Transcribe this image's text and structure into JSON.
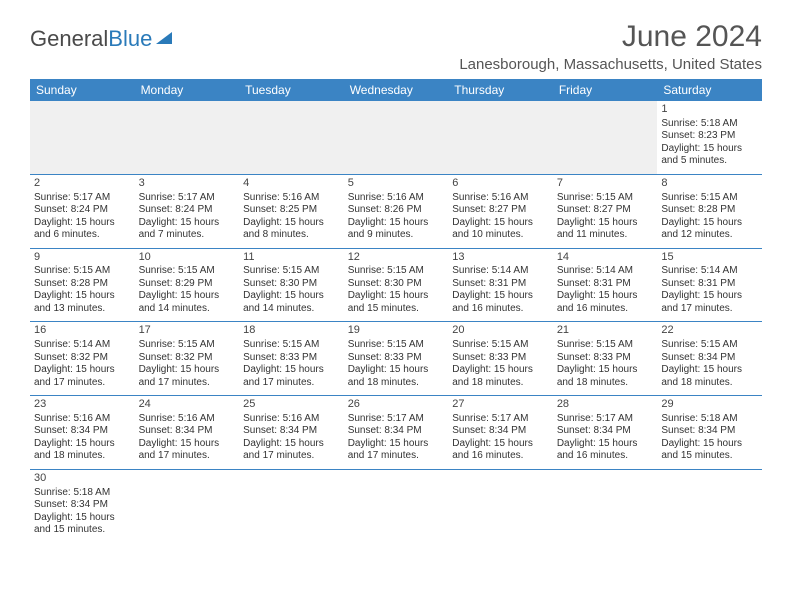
{
  "logo": {
    "text1": "General",
    "text2": "Blue"
  },
  "title": "June 2024",
  "location": "Lanesborough, Massachusetts, United States",
  "colors": {
    "header_bg": "#3b84c4",
    "header_text": "#ffffff",
    "border": "#3b84c4",
    "text": "#333333",
    "logo_blue": "#2a7ab9"
  },
  "weekdays": [
    "Sunday",
    "Monday",
    "Tuesday",
    "Wednesday",
    "Thursday",
    "Friday",
    "Saturday"
  ],
  "weeks": [
    [
      null,
      null,
      null,
      null,
      null,
      null,
      {
        "n": "1",
        "sr": "Sunrise: 5:18 AM",
        "ss": "Sunset: 8:23 PM",
        "dl": "Daylight: 15 hours and 5 minutes."
      }
    ],
    [
      {
        "n": "2",
        "sr": "Sunrise: 5:17 AM",
        "ss": "Sunset: 8:24 PM",
        "dl": "Daylight: 15 hours and 6 minutes."
      },
      {
        "n": "3",
        "sr": "Sunrise: 5:17 AM",
        "ss": "Sunset: 8:24 PM",
        "dl": "Daylight: 15 hours and 7 minutes."
      },
      {
        "n": "4",
        "sr": "Sunrise: 5:16 AM",
        "ss": "Sunset: 8:25 PM",
        "dl": "Daylight: 15 hours and 8 minutes."
      },
      {
        "n": "5",
        "sr": "Sunrise: 5:16 AM",
        "ss": "Sunset: 8:26 PM",
        "dl": "Daylight: 15 hours and 9 minutes."
      },
      {
        "n": "6",
        "sr": "Sunrise: 5:16 AM",
        "ss": "Sunset: 8:27 PM",
        "dl": "Daylight: 15 hours and 10 minutes."
      },
      {
        "n": "7",
        "sr": "Sunrise: 5:15 AM",
        "ss": "Sunset: 8:27 PM",
        "dl": "Daylight: 15 hours and 11 minutes."
      },
      {
        "n": "8",
        "sr": "Sunrise: 5:15 AM",
        "ss": "Sunset: 8:28 PM",
        "dl": "Daylight: 15 hours and 12 minutes."
      }
    ],
    [
      {
        "n": "9",
        "sr": "Sunrise: 5:15 AM",
        "ss": "Sunset: 8:28 PM",
        "dl": "Daylight: 15 hours and 13 minutes."
      },
      {
        "n": "10",
        "sr": "Sunrise: 5:15 AM",
        "ss": "Sunset: 8:29 PM",
        "dl": "Daylight: 15 hours and 14 minutes."
      },
      {
        "n": "11",
        "sr": "Sunrise: 5:15 AM",
        "ss": "Sunset: 8:30 PM",
        "dl": "Daylight: 15 hours and 14 minutes."
      },
      {
        "n": "12",
        "sr": "Sunrise: 5:15 AM",
        "ss": "Sunset: 8:30 PM",
        "dl": "Daylight: 15 hours and 15 minutes."
      },
      {
        "n": "13",
        "sr": "Sunrise: 5:14 AM",
        "ss": "Sunset: 8:31 PM",
        "dl": "Daylight: 15 hours and 16 minutes."
      },
      {
        "n": "14",
        "sr": "Sunrise: 5:14 AM",
        "ss": "Sunset: 8:31 PM",
        "dl": "Daylight: 15 hours and 16 minutes."
      },
      {
        "n": "15",
        "sr": "Sunrise: 5:14 AM",
        "ss": "Sunset: 8:31 PM",
        "dl": "Daylight: 15 hours and 17 minutes."
      }
    ],
    [
      {
        "n": "16",
        "sr": "Sunrise: 5:14 AM",
        "ss": "Sunset: 8:32 PM",
        "dl": "Daylight: 15 hours and 17 minutes."
      },
      {
        "n": "17",
        "sr": "Sunrise: 5:15 AM",
        "ss": "Sunset: 8:32 PM",
        "dl": "Daylight: 15 hours and 17 minutes."
      },
      {
        "n": "18",
        "sr": "Sunrise: 5:15 AM",
        "ss": "Sunset: 8:33 PM",
        "dl": "Daylight: 15 hours and 17 minutes."
      },
      {
        "n": "19",
        "sr": "Sunrise: 5:15 AM",
        "ss": "Sunset: 8:33 PM",
        "dl": "Daylight: 15 hours and 18 minutes."
      },
      {
        "n": "20",
        "sr": "Sunrise: 5:15 AM",
        "ss": "Sunset: 8:33 PM",
        "dl": "Daylight: 15 hours and 18 minutes."
      },
      {
        "n": "21",
        "sr": "Sunrise: 5:15 AM",
        "ss": "Sunset: 8:33 PM",
        "dl": "Daylight: 15 hours and 18 minutes."
      },
      {
        "n": "22",
        "sr": "Sunrise: 5:15 AM",
        "ss": "Sunset: 8:34 PM",
        "dl": "Daylight: 15 hours and 18 minutes."
      }
    ],
    [
      {
        "n": "23",
        "sr": "Sunrise: 5:16 AM",
        "ss": "Sunset: 8:34 PM",
        "dl": "Daylight: 15 hours and 18 minutes."
      },
      {
        "n": "24",
        "sr": "Sunrise: 5:16 AM",
        "ss": "Sunset: 8:34 PM",
        "dl": "Daylight: 15 hours and 17 minutes."
      },
      {
        "n": "25",
        "sr": "Sunrise: 5:16 AM",
        "ss": "Sunset: 8:34 PM",
        "dl": "Daylight: 15 hours and 17 minutes."
      },
      {
        "n": "26",
        "sr": "Sunrise: 5:17 AM",
        "ss": "Sunset: 8:34 PM",
        "dl": "Daylight: 15 hours and 17 minutes."
      },
      {
        "n": "27",
        "sr": "Sunrise: 5:17 AM",
        "ss": "Sunset: 8:34 PM",
        "dl": "Daylight: 15 hours and 16 minutes."
      },
      {
        "n": "28",
        "sr": "Sunrise: 5:17 AM",
        "ss": "Sunset: 8:34 PM",
        "dl": "Daylight: 15 hours and 16 minutes."
      },
      {
        "n": "29",
        "sr": "Sunrise: 5:18 AM",
        "ss": "Sunset: 8:34 PM",
        "dl": "Daylight: 15 hours and 15 minutes."
      }
    ],
    [
      {
        "n": "30",
        "sr": "Sunrise: 5:18 AM",
        "ss": "Sunset: 8:34 PM",
        "dl": "Daylight: 15 hours and 15 minutes."
      },
      null,
      null,
      null,
      null,
      null,
      null
    ]
  ]
}
